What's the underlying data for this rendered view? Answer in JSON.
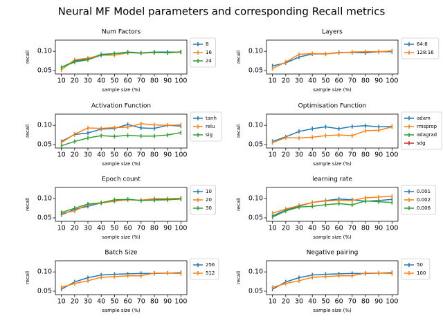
{
  "title": "Neural MF Model parameters and corresponding Recall metrics",
  "chart_data": [
    {
      "type": "line",
      "title": "Num Factors",
      "xlabel": "sample size (%)",
      "ylabel": "recall",
      "legend": "outside right",
      "x": [
        10,
        20,
        30,
        40,
        50,
        60,
        70,
        80,
        90,
        100
      ],
      "xticks": [
        10,
        20,
        30,
        40,
        50,
        60,
        70,
        80,
        90,
        100
      ],
      "xlim": [
        5.5,
        104.5
      ],
      "ylim": [
        0.041,
        0.129
      ],
      "yticks": [
        0.05,
        {
          "value": 0.1,
          "label": "0.10"
        }
      ],
      "series": [
        {
          "name": "8",
          "color": "#1f77b4",
          "values": [
            0.058,
            0.075,
            0.08,
            0.092,
            0.094,
            0.098,
            0.096,
            0.098,
            0.098,
            0.098
          ]
        },
        {
          "name": "16",
          "color": "#ff7f0e",
          "values": [
            0.052,
            0.078,
            0.082,
            0.09,
            0.09,
            0.096,
            0.096,
            0.097,
            0.096,
            0.099
          ]
        },
        {
          "name": "24",
          "color": "#2ca02c",
          "values": [
            0.058,
            0.072,
            0.078,
            0.09,
            0.094,
            0.097,
            0.095,
            0.097,
            0.096,
            0.098
          ]
        }
      ]
    },
    {
      "type": "line",
      "title": "Layers",
      "xlabel": "sample size (%)",
      "ylabel": "recall",
      "legend": "outside right",
      "x": [
        10,
        20,
        30,
        40,
        50,
        60,
        70,
        80,
        90,
        100
      ],
      "xticks": [
        10,
        20,
        30,
        40,
        50,
        60,
        70,
        80,
        90,
        100
      ],
      "xlim": [
        5.5,
        104.5
      ],
      "ylim": [
        0.041,
        0.129
      ],
      "yticks": [
        0.05,
        {
          "value": 0.1,
          "label": "0.10"
        }
      ],
      "series": [
        {
          "name": "64:8",
          "color": "#1f77b4",
          "values": [
            0.062,
            0.07,
            0.085,
            0.093,
            0.093,
            0.097,
            0.097,
            0.096,
            0.099,
            0.099
          ]
        },
        {
          "name": "128:16",
          "color": "#ff7f0e",
          "values": [
            0.055,
            0.072,
            0.092,
            0.094,
            0.093,
            0.096,
            0.098,
            0.099,
            0.099,
            0.101
          ]
        }
      ]
    },
    {
      "type": "line",
      "title": "Activation Function",
      "xlabel": "sample size (%)",
      "ylabel": "recall",
      "legend": "outside right",
      "x": [
        10,
        20,
        30,
        40,
        50,
        60,
        70,
        80,
        90,
        100
      ],
      "xticks": [
        10,
        20,
        30,
        40,
        50,
        60,
        70,
        80,
        90,
        100
      ],
      "xlim": [
        5.5,
        104.5
      ],
      "ylim": [
        0.041,
        0.129
      ],
      "yticks": [
        0.05,
        {
          "value": 0.1,
          "label": "0.10"
        }
      ],
      "series": [
        {
          "name": "tanh",
          "color": "#1f77b4",
          "values": [
            0.058,
            0.076,
            0.08,
            0.09,
            0.092,
            0.102,
            0.093,
            0.092,
            0.1,
            0.098
          ]
        },
        {
          "name": "relu",
          "color": "#ff7f0e",
          "values": [
            0.055,
            0.077,
            0.093,
            0.092,
            0.094,
            0.095,
            0.104,
            0.101,
            0.1,
            0.101
          ]
        },
        {
          "name": "sig",
          "color": "#2ca02c",
          "values": [
            0.047,
            0.058,
            0.067,
            0.073,
            0.071,
            0.074,
            0.072,
            0.072,
            0.075,
            0.081
          ]
        }
      ]
    },
    {
      "type": "line",
      "title": "Optimisation Function",
      "xlabel": "sample size (%)",
      "ylabel": "recall",
      "legend": "outside right",
      "x": [
        10,
        20,
        30,
        40,
        50,
        60,
        70,
        80,
        90,
        100
      ],
      "xticks": [
        10,
        20,
        30,
        40,
        50,
        60,
        70,
        80,
        90,
        100
      ],
      "xlim": [
        5.5,
        104.5
      ],
      "ylim": [
        0.041,
        0.129
      ],
      "yticks": [
        0.05,
        {
          "value": 0.1,
          "label": "0.10"
        }
      ],
      "series": [
        {
          "name": "adam",
          "color": "#1f77b4",
          "values": [
            0.058,
            0.07,
            0.084,
            0.091,
            0.096,
            0.091,
            0.097,
            0.099,
            0.096,
            0.097
          ]
        },
        {
          "name": "rmsprop",
          "color": "#ff7f0e",
          "values": [
            0.055,
            0.068,
            0.067,
            0.069,
            0.073,
            0.075,
            0.073,
            0.086,
            0.087,
            0.096
          ]
        },
        {
          "name": "adagrad",
          "color": "#2ca02c",
          "values": [
            null,
            null,
            null,
            null,
            null,
            null,
            null,
            null,
            null,
            null
          ]
        },
        {
          "name": "sdg",
          "color": "#d62728",
          "values": [
            null,
            null,
            null,
            null,
            null,
            null,
            null,
            null,
            null,
            null
          ]
        }
      ]
    },
    {
      "type": "line",
      "title": "Epoch count",
      "xlabel": "sample size (%)",
      "ylabel": "recall",
      "legend": "outside right",
      "x": [
        10,
        20,
        30,
        40,
        50,
        60,
        70,
        80,
        90,
        100
      ],
      "xticks": [
        10,
        20,
        30,
        40,
        50,
        60,
        70,
        80,
        90,
        100
      ],
      "xlim": [
        5.5,
        104.5
      ],
      "ylim": [
        0.041,
        0.129
      ],
      "yticks": [
        0.05,
        {
          "value": 0.1,
          "label": "0.10"
        }
      ],
      "series": [
        {
          "name": "10",
          "color": "#1f77b4",
          "values": [
            0.058,
            0.072,
            0.08,
            0.089,
            0.093,
            0.098,
            0.095,
            0.097,
            0.098,
            0.099
          ]
        },
        {
          "name": "20",
          "color": "#ff7f0e",
          "values": [
            0.062,
            0.068,
            0.085,
            0.088,
            0.094,
            0.097,
            0.096,
            0.1,
            0.1,
            0.101
          ]
        },
        {
          "name": "30",
          "color": "#2ca02c",
          "values": [
            0.064,
            0.075,
            0.086,
            0.089,
            0.097,
            0.098,
            0.095,
            0.096,
            0.097,
            0.099
          ]
        }
      ]
    },
    {
      "type": "line",
      "title": "learning rate",
      "xlabel": "sample size (%)",
      "ylabel": "recall",
      "legend": "outside right",
      "x": [
        10,
        20,
        30,
        40,
        50,
        60,
        70,
        80,
        90,
        100
      ],
      "xticks": [
        10,
        20,
        30,
        40,
        50,
        60,
        70,
        80,
        90,
        100
      ],
      "xlim": [
        5.5,
        104.5
      ],
      "ylim": [
        0.041,
        0.129
      ],
      "yticks": [
        0.05,
        {
          "value": 0.1,
          "label": "0.10"
        }
      ],
      "series": [
        {
          "name": "0.001",
          "color": "#1f77b4",
          "values": [
            0.055,
            0.07,
            0.08,
            0.09,
            0.095,
            0.099,
            0.097,
            0.093,
            0.095,
            0.098
          ]
        },
        {
          "name": "0.002",
          "color": "#ff7f0e",
          "values": [
            0.062,
            0.073,
            0.082,
            0.09,
            0.094,
            0.095,
            0.095,
            0.102,
            0.104,
            0.106
          ]
        },
        {
          "name": "0.006",
          "color": "#2ca02c",
          "values": [
            0.052,
            0.068,
            0.078,
            0.08,
            0.084,
            0.087,
            0.084,
            0.094,
            0.092,
            0.09
          ]
        }
      ]
    },
    {
      "type": "line",
      "title": "Batch Size",
      "xlabel": "sample size (%)",
      "ylabel": "recall",
      "legend": "outside right",
      "x": [
        10,
        20,
        30,
        40,
        50,
        60,
        70,
        80,
        90,
        100
      ],
      "xticks": [
        10,
        20,
        30,
        40,
        50,
        60,
        70,
        80,
        90,
        100
      ],
      "xlim": [
        5.5,
        104.5
      ],
      "ylim": [
        0.041,
        0.129
      ],
      "yticks": [
        0.05,
        {
          "value": 0.1,
          "label": "0.10"
        }
      ],
      "series": [
        {
          "name": "256",
          "color": "#1f77b4",
          "values": [
            0.055,
            0.074,
            0.085,
            0.092,
            0.094,
            0.095,
            0.096,
            0.096,
            0.097,
            0.098
          ]
        },
        {
          "name": "512",
          "color": "#ff7f0e",
          "values": [
            0.06,
            0.07,
            0.077,
            0.086,
            0.088,
            0.09,
            0.09,
            0.097,
            0.097,
            0.096
          ]
        }
      ]
    },
    {
      "type": "line",
      "title": "Negative pairing",
      "xlabel": "sample size (%)",
      "ylabel": "recall",
      "legend": "outside right",
      "x": [
        10,
        20,
        30,
        40,
        50,
        60,
        70,
        80,
        90,
        100
      ],
      "xticks": [
        10,
        20,
        30,
        40,
        50,
        60,
        70,
        80,
        90,
        100
      ],
      "xlim": [
        5.5,
        104.5
      ],
      "ylim": [
        0.041,
        0.129
      ],
      "yticks": [
        0.05,
        {
          "value": 0.1,
          "label": "0.10"
        }
      ],
      "series": [
        {
          "name": "50",
          "color": "#1f77b4",
          "values": [
            0.055,
            0.074,
            0.085,
            0.092,
            0.094,
            0.095,
            0.096,
            0.096,
            0.097,
            0.098
          ]
        },
        {
          "name": "100",
          "color": "#ff7f0e",
          "values": [
            0.06,
            0.07,
            0.077,
            0.086,
            0.088,
            0.09,
            0.09,
            0.097,
            0.097,
            0.096
          ]
        }
      ]
    }
  ]
}
